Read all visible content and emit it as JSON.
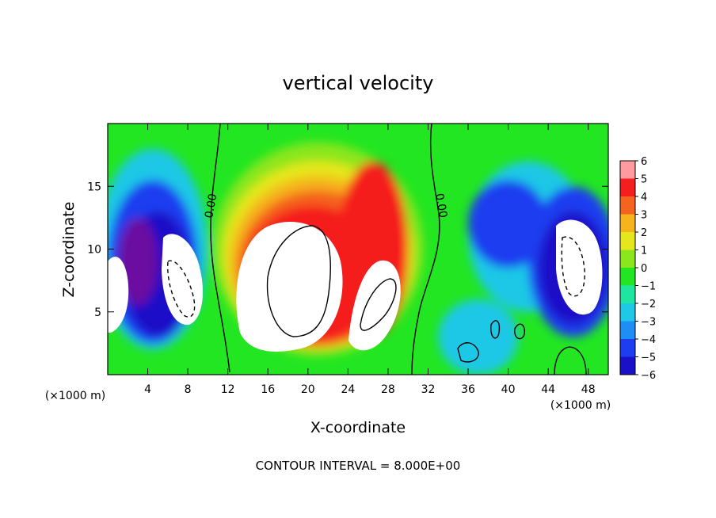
{
  "chart_data": {
    "type": "heatmap",
    "title": "vertical velocity",
    "xlabel": "X-coordinate",
    "ylabel": "Z-coordinate",
    "x_unit_left": "(×1000 m)",
    "x_unit_right": "(×1000 m)",
    "xlim": [
      0,
      50
    ],
    "ylim": [
      0,
      20
    ],
    "x_ticks": [
      "4",
      "8",
      "12",
      "16",
      "20",
      "24",
      "28",
      "32",
      "36",
      "40",
      "44",
      "48"
    ],
    "y_ticks": [
      "5",
      "10",
      "15"
    ],
    "colorbar": {
      "min": -6,
      "max": 6,
      "labels": [
        "6",
        "5",
        "4",
        "3",
        "2",
        "1",
        "0",
        "−1",
        "−2",
        "−3",
        "−4",
        "−5",
        "−6"
      ]
    },
    "contour_labels": [
      "0.00",
      "0.00"
    ],
    "contour_interval_text": "CONTOUR INTERVAL = 8.000E+00",
    "features": [
      {
        "x": 20,
        "z": 9,
        "w_min": 6,
        "desc": "strong updraft core"
      },
      {
        "x": 27,
        "z": 7,
        "w_min": 6,
        "desc": "updraft core"
      },
      {
        "x": 46.5,
        "z": 8,
        "w_max": -6,
        "desc": "strong downdraft core"
      },
      {
        "x": 6.5,
        "z": 6,
        "w_max": -6,
        "desc": "downdraft core"
      },
      {
        "x": 1,
        "z": 6,
        "w_max": -6,
        "desc": "downdraft core at left edge"
      }
    ],
    "grid": false
  }
}
